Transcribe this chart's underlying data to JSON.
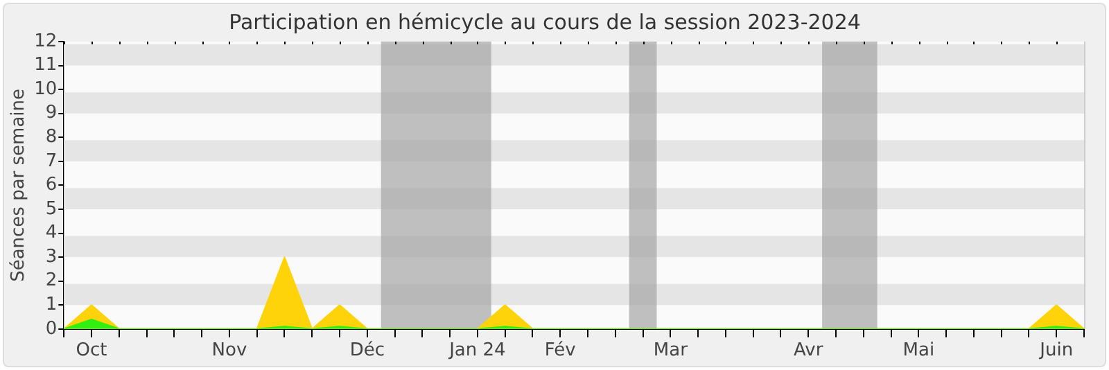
{
  "chart_data": {
    "type": "area",
    "title": "Participation en hémicycle au cours de la session 2023-2024",
    "ylabel": "Séances par semaine",
    "categories": [
      null,
      "Oct",
      null,
      null,
      null,
      null,
      "Nov",
      null,
      null,
      null,
      null,
      "Déc",
      null,
      null,
      null,
      "Jan 24",
      null,
      null,
      "Fév",
      null,
      null,
      null,
      "Mar",
      null,
      null,
      null,
      null,
      "Avr",
      null,
      null,
      null,
      "Mai",
      null,
      null,
      null,
      null,
      "Juin",
      null
    ],
    "series": [
      {
        "color": "#ffd30a",
        "values": [
          0,
          1,
          0,
          0,
          0,
          0,
          0,
          0,
          3,
          0,
          1,
          0,
          0,
          0,
          0,
          0,
          1,
          0,
          0,
          0,
          0,
          0,
          0,
          0,
          0,
          0,
          0,
          0,
          0,
          0,
          0,
          0,
          0,
          0,
          0,
          0,
          1,
          0
        ]
      },
      {
        "color": "#33ee11",
        "values": [
          0,
          0.4,
          0,
          0,
          0,
          0,
          0,
          0,
          0.1,
          0,
          0.1,
          0,
          0,
          0,
          0,
          0,
          0.1,
          0,
          0,
          0,
          0,
          0,
          0,
          0,
          0,
          0,
          0,
          0,
          0,
          0,
          0,
          0,
          0,
          0,
          0,
          0,
          0.1,
          0
        ]
      }
    ],
    "ylim": [
      0,
      12
    ],
    "yticks": [
      0,
      1,
      2,
      3,
      4,
      5,
      6,
      7,
      8,
      9,
      10,
      11,
      12
    ],
    "grid": false
  }
}
